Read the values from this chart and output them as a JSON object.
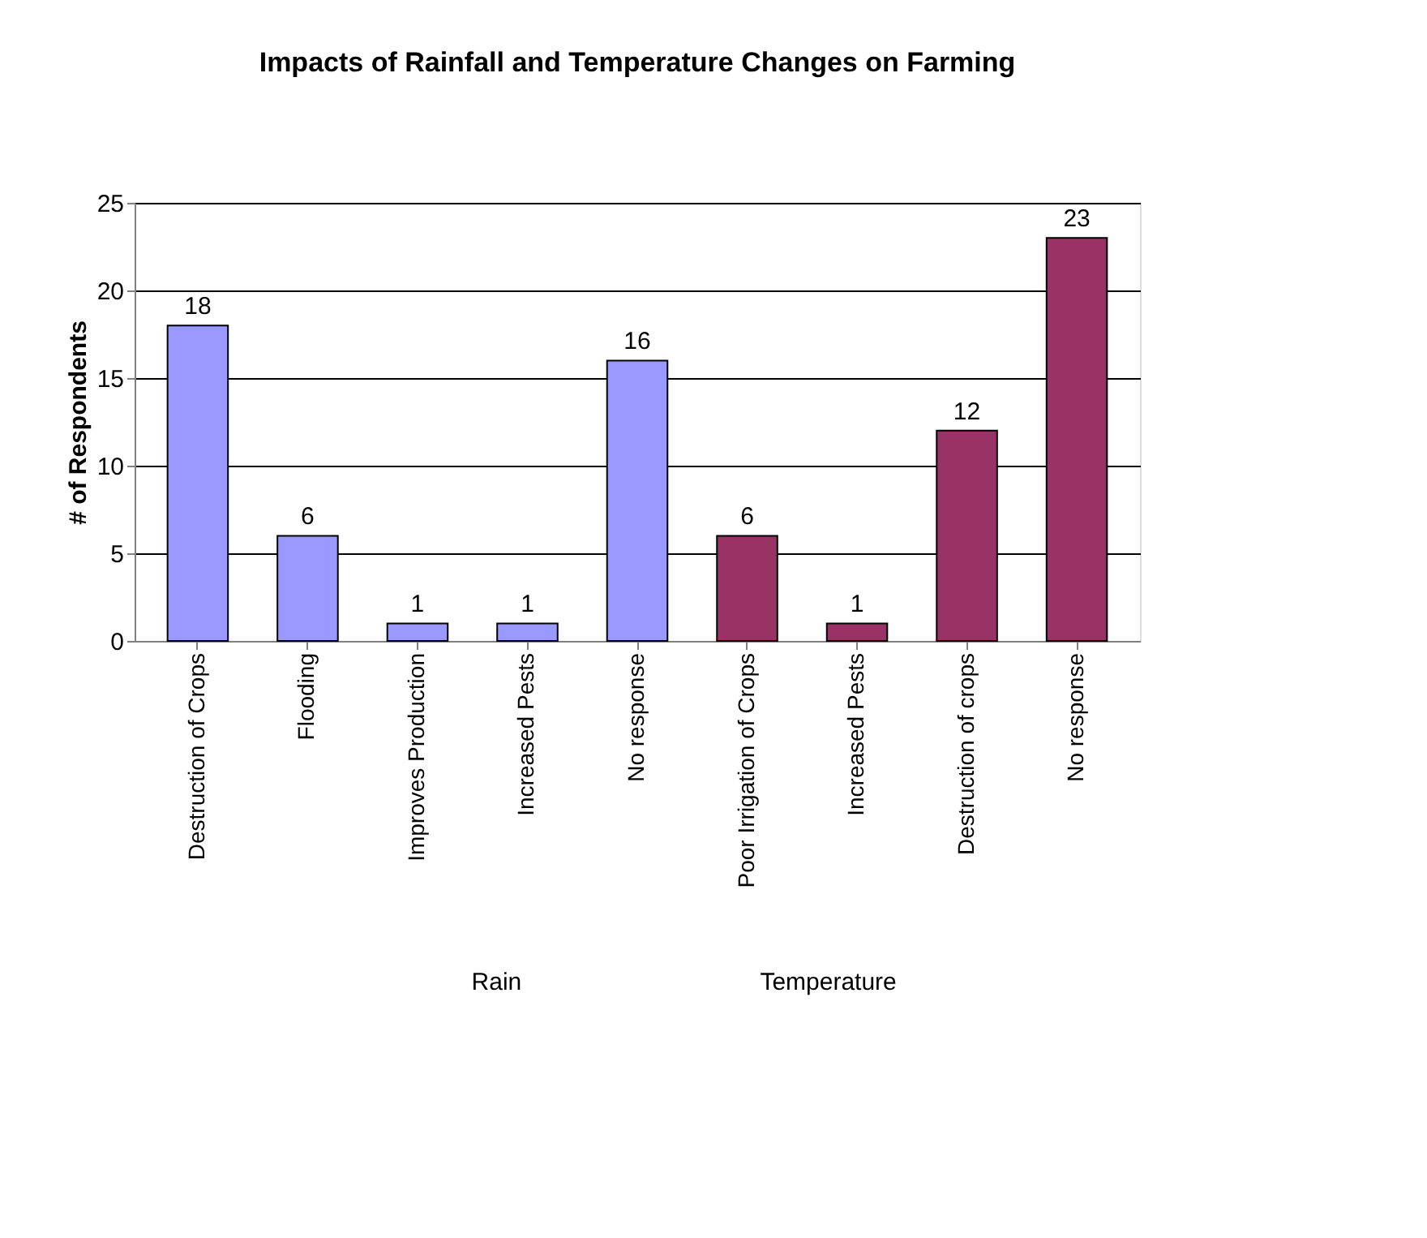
{
  "chart_data": {
    "type": "bar",
    "title": "Impacts of Rainfall and Temperature Changes on Farming",
    "ylabel": "# of Respondents",
    "categories": [
      "Destruction of Crops",
      "Flooding",
      "Improves Production",
      "Increased Pests",
      "No response",
      "Poor Irrigation of Crops",
      "Increased Pests",
      "Destruction of crops",
      "No response"
    ],
    "values": [
      18,
      6,
      1,
      1,
      16,
      6,
      1,
      12,
      23
    ],
    "colors": [
      "#9999ff",
      "#9999ff",
      "#9999ff",
      "#9999ff",
      "#9999ff",
      "#993366",
      "#993366",
      "#993366",
      "#993366"
    ],
    "ylim": [
      0,
      25
    ],
    "yticks": [
      0,
      5,
      10,
      15,
      20,
      25
    ],
    "grid": "y",
    "data_labels": true,
    "annotations": [
      "Rain",
      "Temperature"
    ]
  }
}
